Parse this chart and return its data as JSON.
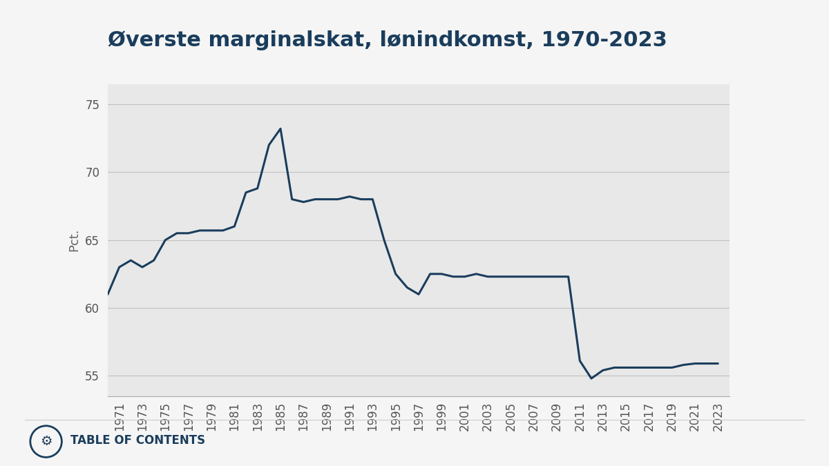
{
  "title": "Øverste marginalskat, lønindkomst, 1970-2023",
  "ylabel": "Pct.",
  "plot_bg_color": "#e8e8e8",
  "fig_bg_color": "#f5f5f5",
  "line_color": "#1a3d5c",
  "line_width": 2.2,
  "ylim": [
    53.5,
    76.5
  ],
  "yticks": [
    55,
    60,
    65,
    70,
    75
  ],
  "years": [
    1970,
    1971,
    1972,
    1973,
    1974,
    1975,
    1976,
    1977,
    1978,
    1979,
    1980,
    1981,
    1982,
    1983,
    1984,
    1985,
    1986,
    1987,
    1988,
    1989,
    1990,
    1991,
    1992,
    1993,
    1994,
    1995,
    1996,
    1997,
    1998,
    1999,
    2000,
    2001,
    2002,
    2003,
    2004,
    2005,
    2006,
    2007,
    2008,
    2009,
    2010,
    2011,
    2012,
    2013,
    2014,
    2015,
    2016,
    2017,
    2018,
    2019,
    2020,
    2021,
    2022,
    2023
  ],
  "values": [
    61.0,
    63.0,
    63.5,
    63.0,
    63.5,
    65.0,
    65.5,
    65.5,
    65.7,
    65.7,
    65.7,
    66.0,
    68.5,
    68.8,
    72.0,
    73.2,
    68.0,
    67.8,
    68.0,
    68.0,
    68.0,
    68.2,
    68.0,
    68.0,
    65.0,
    62.5,
    61.5,
    61.0,
    62.5,
    62.5,
    62.3,
    62.3,
    62.5,
    62.3,
    62.3,
    62.3,
    62.3,
    62.3,
    62.3,
    62.3,
    62.3,
    56.1,
    54.8,
    55.4,
    55.6,
    55.6,
    55.6,
    55.6,
    55.6,
    55.6,
    55.8,
    55.9,
    55.9,
    55.9
  ],
  "xtick_years": [
    1971,
    1973,
    1975,
    1977,
    1979,
    1981,
    1983,
    1985,
    1987,
    1989,
    1991,
    1993,
    1995,
    1997,
    1999,
    2001,
    2003,
    2005,
    2007,
    2009,
    2011,
    2013,
    2015,
    2017,
    2019,
    2021,
    2023
  ],
  "title_color": "#1a3d5c",
  "title_fontsize": 22,
  "tick_fontsize": 12,
  "footer_text": "TABLE OF CONTENTS",
  "footer_color": "#1a3d5c",
  "footer_fontsize": 12
}
